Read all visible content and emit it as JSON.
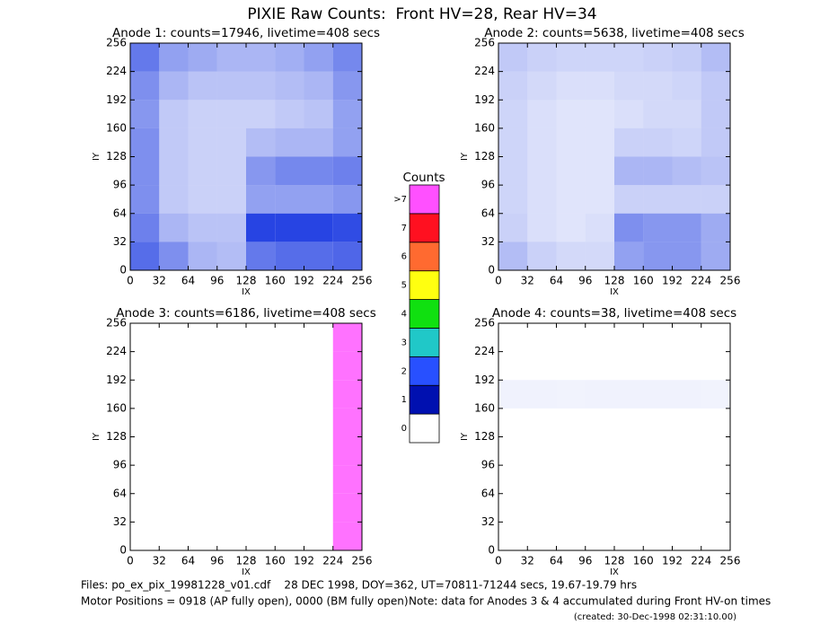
{
  "title": "PIXIE Raw Counts:  Front HV=28, Rear HV=34",
  "chart_data": [
    {
      "type": "heatmap",
      "title": "Anode 1: counts=17946, livetime=408 secs",
      "xlabel": "IX",
      "ylabel": "IY",
      "color": "#1030e0",
      "xlim": [
        0,
        256
      ],
      "ylim": [
        0,
        256
      ],
      "xticks": [
        0,
        32,
        64,
        96,
        128,
        160,
        192,
        224,
        256
      ],
      "yticks": [
        0,
        32,
        64,
        96,
        128,
        160,
        192,
        224,
        256
      ],
      "z": [
        [
          600,
          350,
          150,
          120,
          500,
          600,
          600,
          650
        ],
        [
          450,
          150,
          100,
          100,
          1100,
          1200,
          1100,
          900
        ],
        [
          350,
          80,
          60,
          60,
          250,
          250,
          250,
          300
        ],
        [
          350,
          80,
          60,
          60,
          300,
          400,
          400,
          450
        ],
        [
          350,
          80,
          60,
          60,
          120,
          150,
          150,
          250
        ],
        [
          300,
          80,
          60,
          60,
          60,
          80,
          100,
          250
        ],
        [
          350,
          150,
          100,
          100,
          100,
          120,
          150,
          300
        ],
        [
          500,
          250,
          200,
          150,
          150,
          180,
          250,
          400
        ]
      ]
    },
    {
      "type": "heatmap",
      "title": "Anode 2: counts=5638, livetime=408 secs",
      "xlabel": "IX",
      "ylabel": "IY",
      "color": "#1030e0",
      "xlim": [
        0,
        256
      ],
      "ylim": [
        0,
        256
      ],
      "xticks": [
        0,
        32,
        64,
        96,
        128,
        160,
        192,
        224,
        256
      ],
      "yticks": [
        0,
        32,
        64,
        96,
        128,
        160,
        192,
        224,
        256
      ],
      "z": [
        [
          120,
          60,
          40,
          40,
          250,
          300,
          300,
          200
        ],
        [
          60,
          30,
          20,
          30,
          350,
          300,
          300,
          200
        ],
        [
          50,
          30,
          20,
          20,
          60,
          60,
          60,
          60
        ],
        [
          50,
          30,
          20,
          20,
          150,
          150,
          120,
          100
        ],
        [
          50,
          30,
          20,
          20,
          60,
          60,
          50,
          80
        ],
        [
          50,
          30,
          20,
          20,
          30,
          40,
          40,
          80
        ],
        [
          60,
          40,
          30,
          30,
          40,
          40,
          50,
          80
        ],
        [
          80,
          60,
          50,
          50,
          50,
          60,
          70,
          120
        ]
      ]
    },
    {
      "type": "heatmap",
      "title": "Anode 3: counts=6186, livetime=408 secs",
      "xlabel": "IX",
      "ylabel": "IY",
      "color": "#ff50ff",
      "xlim": [
        0,
        256
      ],
      "ylim": [
        0,
        256
      ],
      "xticks": [
        0,
        32,
        64,
        96,
        128,
        160,
        192,
        224,
        256
      ],
      "yticks": [
        0,
        32,
        64,
        96,
        128,
        160,
        192,
        224,
        256
      ],
      "z": [
        [
          0,
          0,
          0,
          0,
          0,
          0,
          0,
          773
        ],
        [
          0,
          0,
          0,
          0,
          0,
          0,
          0,
          773
        ],
        [
          0,
          0,
          0,
          0,
          0,
          0,
          0,
          773
        ],
        [
          0,
          0,
          0,
          0,
          0,
          0,
          0,
          773
        ],
        [
          0,
          0,
          0,
          0,
          0,
          0,
          0,
          773
        ],
        [
          0,
          0,
          0,
          0,
          0,
          0,
          0,
          773
        ],
        [
          0,
          0,
          0,
          0,
          0,
          0,
          0,
          773
        ],
        [
          0,
          0,
          0,
          0,
          0,
          0,
          0,
          773
        ]
      ]
    },
    {
      "type": "heatmap",
      "title": "Anode 4: counts=38, livetime=408 secs",
      "xlabel": "IX",
      "ylabel": "IY",
      "color": "#1030e0",
      "xlim": [
        0,
        256
      ],
      "ylim": [
        0,
        256
      ],
      "xticks": [
        0,
        32,
        64,
        96,
        128,
        160,
        192,
        224,
        256
      ],
      "yticks": [
        0,
        32,
        64,
        96,
        128,
        160,
        192,
        224,
        256
      ],
      "z": [
        [
          0,
          0,
          0,
          0,
          0,
          0,
          0,
          0
        ],
        [
          0,
          0,
          0,
          0,
          0,
          0,
          0,
          0
        ],
        [
          0,
          0,
          0,
          0,
          0,
          0,
          0,
          0
        ],
        [
          0,
          0,
          0,
          0,
          0,
          0,
          0,
          0
        ],
        [
          0,
          0,
          0,
          0,
          0,
          0,
          0,
          0
        ],
        [
          5,
          5,
          4,
          5,
          5,
          5,
          5,
          4
        ],
        [
          0,
          0,
          0,
          0,
          0,
          0,
          0,
          0
        ],
        [
          0,
          0,
          0,
          0,
          0,
          0,
          0,
          0
        ]
      ]
    }
  ],
  "colorbar": {
    "title": "Counts",
    "labels": [
      "0",
      "1",
      "2",
      "3",
      "4",
      "5",
      "6",
      "7",
      ">7"
    ],
    "colors": [
      "#ffffff",
      "#0010b0",
      "#2850ff",
      "#20c8c8",
      "#10e010",
      "#ffff10",
      "#ff6a30",
      "#ff1020",
      "#ff50ff"
    ]
  },
  "footer": {
    "files": "Files: po_ex_pix_19981228_v01.cdf    28 DEC 1998, DOY=362, UT=70811-71244 secs, 19.67-19.79 hrs",
    "motor": "Motor Positions = 0918 (AP fully open), 0000 (BM fully open)",
    "note": "Note: data for Anodes 3 & 4 accumulated during Front HV-on times",
    "created": "(created: 30-Dec-1998 02:31:10.00)"
  }
}
